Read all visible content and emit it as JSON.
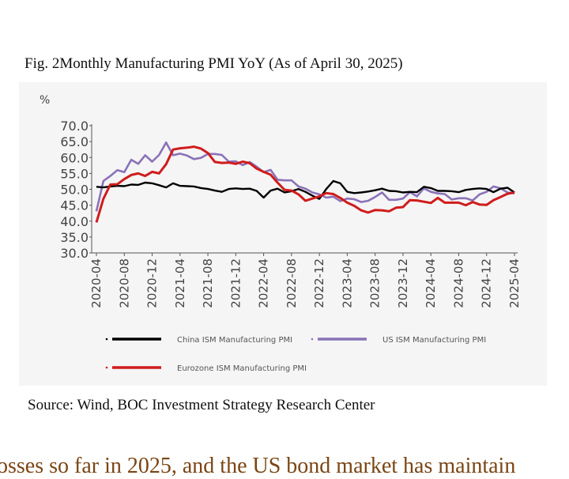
{
  "title": "Fig. 2Monthly Manufacturing PMI YoY (As of April 30, 2025)",
  "source": "Source: Wind, BOC Investment Strategy Research Center",
  "body_text": "osses so far in 2025, and the US bond market has maintain",
  "chart_data": {
    "type": "line",
    "title": "Fig. 2Monthly Manufacturing PMI YoY (As of April 30, 2025)",
    "ylabel": "%",
    "ylim": [
      30,
      70
    ],
    "yticks": [
      "30.0",
      "35.0",
      "40.0",
      "45.0",
      "50.0",
      "55.0",
      "60.0",
      "65.0",
      "70.0"
    ],
    "xticks": [
      "2020-04",
      "2020-08",
      "2020-12",
      "2021-04",
      "2021-08",
      "2021-12",
      "2022-04",
      "2022-08",
      "2022-12",
      "2023-04",
      "2023-08",
      "2023-12",
      "2024-04",
      "2024-08",
      "2024-12",
      "2025-04"
    ],
    "x": [
      "2020-04",
      "2020-05",
      "2020-06",
      "2020-07",
      "2020-08",
      "2020-09",
      "2020-10",
      "2020-11",
      "2020-12",
      "2021-01",
      "2021-02",
      "2021-03",
      "2021-04",
      "2021-05",
      "2021-06",
      "2021-07",
      "2021-08",
      "2021-09",
      "2021-10",
      "2021-11",
      "2021-12",
      "2022-01",
      "2022-02",
      "2022-03",
      "2022-04",
      "2022-05",
      "2022-06",
      "2022-07",
      "2022-08",
      "2022-09",
      "2022-10",
      "2022-11",
      "2022-12",
      "2023-01",
      "2023-02",
      "2023-03",
      "2023-04",
      "2023-05",
      "2023-06",
      "2023-07",
      "2023-08",
      "2023-09",
      "2023-10",
      "2023-11",
      "2023-12",
      "2024-01",
      "2024-02",
      "2024-03",
      "2024-04",
      "2024-05",
      "2024-06",
      "2024-07",
      "2024-08",
      "2024-09",
      "2024-10",
      "2024-11",
      "2024-12",
      "2025-01",
      "2025-02",
      "2025-03",
      "2025-04"
    ],
    "grid": false,
    "legend_position": "bottom",
    "series": [
      {
        "name": "China ISM Manufacturing PMI",
        "color": "#000000",
        "values": [
          50.8,
          50.6,
          50.9,
          51.1,
          51.0,
          51.5,
          51.4,
          52.1,
          51.9,
          51.3,
          50.6,
          51.9,
          51.1,
          51.0,
          50.9,
          50.4,
          50.1,
          49.6,
          49.2,
          50.1,
          50.3,
          50.1,
          50.2,
          49.5,
          47.4,
          49.6,
          50.2,
          49.0,
          49.4,
          50.1,
          49.2,
          48.0,
          47.0,
          50.1,
          52.6,
          51.9,
          49.2,
          48.8,
          49.0,
          49.3,
          49.7,
          50.2,
          49.5,
          49.4,
          49.0,
          49.2,
          49.1,
          50.8,
          50.4,
          49.5,
          49.5,
          49.4,
          49.1,
          49.8,
          50.1,
          50.3,
          50.1,
          49.1,
          50.2,
          50.5,
          49.0
        ]
      },
      {
        "name": "US ISM Manufacturing PMI",
        "color": "#8a72b8",
        "values": [
          43.1,
          52.6,
          54.2,
          56.0,
          55.4,
          59.3,
          58.0,
          60.7,
          58.7,
          60.8,
          64.7,
          60.7,
          61.2,
          60.6,
          59.5,
          59.9,
          61.1,
          61.1,
          60.8,
          58.7,
          58.8,
          57.6,
          58.6,
          57.1,
          55.4,
          56.1,
          53.0,
          52.8,
          52.8,
          50.9,
          50.2,
          49.0,
          48.4,
          47.4,
          47.7,
          46.3,
          47.1,
          46.9,
          46.0,
          46.4,
          47.6,
          49.0,
          46.7,
          46.7,
          47.1,
          49.1,
          47.8,
          50.3,
          49.2,
          48.7,
          48.5,
          46.8,
          47.2,
          47.2,
          46.5,
          48.4,
          49.2,
          50.9,
          50.3,
          49.0,
          48.7
        ]
      },
      {
        "name": "Eurozone ISM Manufacturing PMI",
        "color": "#d01c1c",
        "values": [
          39.6,
          47.0,
          51.5,
          51.6,
          53.2,
          54.5,
          55.0,
          54.2,
          55.5,
          55.0,
          57.9,
          62.5,
          62.9,
          63.1,
          63.4,
          62.8,
          61.4,
          58.6,
          58.3,
          58.4,
          58.0,
          58.7,
          58.2,
          56.5,
          55.5,
          54.6,
          52.1,
          49.8,
          49.6,
          48.4,
          46.4,
          47.1,
          47.8,
          48.8,
          48.5,
          47.3,
          45.8,
          44.8,
          43.4,
          42.7,
          43.5,
          43.4,
          43.1,
          44.2,
          44.4,
          46.6,
          46.5,
          46.1,
          45.7,
          47.3,
          45.8,
          45.8,
          45.8,
          45.0,
          46.0,
          45.2,
          45.1,
          46.6,
          47.6,
          48.6,
          49.0
        ]
      }
    ]
  }
}
